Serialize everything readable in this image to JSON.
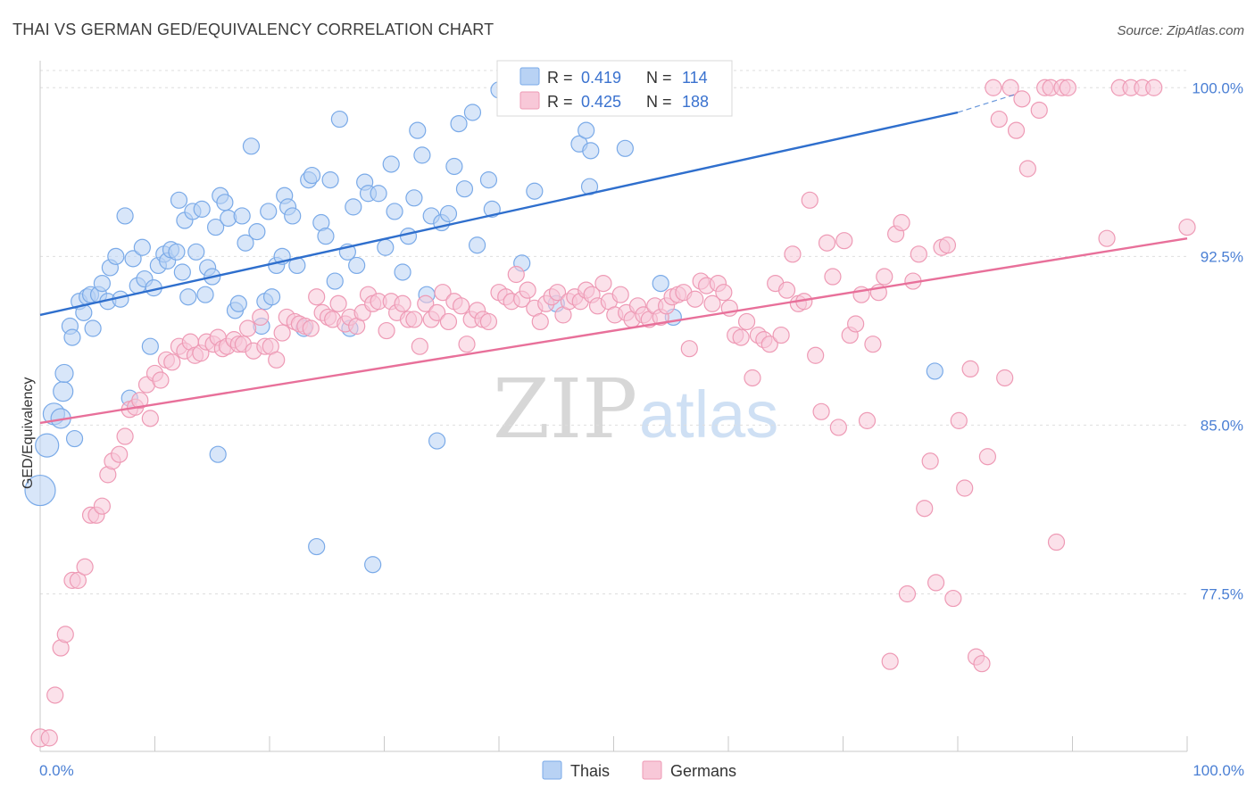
{
  "chart_data": {
    "type": "scatter",
    "title": "THAI VS GERMAN GED/EQUIVALENCY CORRELATION CHART",
    "source": "Source: ZipAtlas.com",
    "ylabel": "GED/Equivalency",
    "xlim": [
      0,
      100
    ],
    "ylim": [
      70.5,
      101.2
    ],
    "yticks": [
      77.5,
      85.0,
      92.5,
      100.0
    ],
    "ytick_labels": [
      "77.5%",
      "85.0%",
      "92.5%",
      "100.0%"
    ],
    "xtick_labels": [
      "0.0%",
      "100.0%"
    ],
    "grid": true,
    "legend_position": "bottom",
    "watermark": {
      "zip": "ZIP",
      "atlas": "atlas"
    },
    "stats": {
      "thais": {
        "r_label": "R =",
        "r": "0.419",
        "n_label": "N =",
        "n": "114"
      },
      "germans": {
        "r_label": "R =",
        "r": "0.425",
        "n_label": "N =",
        "n": "188"
      }
    },
    "series": [
      {
        "name": "Thais",
        "color": "#7aaae8",
        "fill": "#b8d2f4",
        "trend": {
          "x0": 0,
          "y0": 89.9,
          "x1": 80,
          "y1": 98.9,
          "dash_to": 85,
          "dash_y": 99.7,
          "color": "#2f6fcd"
        },
        "points": [
          [
            0,
            82.1
          ],
          [
            0.6,
            84.1
          ],
          [
            1.2,
            85.5
          ],
          [
            1.8,
            85.3
          ],
          [
            2.0,
            86.5
          ],
          [
            2.1,
            87.3
          ],
          [
            2.6,
            89.4
          ],
          [
            2.8,
            88.9
          ],
          [
            3.0,
            84.4
          ],
          [
            3.4,
            90.5
          ],
          [
            3.8,
            90.0
          ],
          [
            4.1,
            90.7
          ],
          [
            4.4,
            90.8
          ],
          [
            4.6,
            89.3
          ],
          [
            5.1,
            90.8
          ],
          [
            5.4,
            91.3
          ],
          [
            5.9,
            90.5
          ],
          [
            6.1,
            92.0
          ],
          [
            6.6,
            92.5
          ],
          [
            7.0,
            90.6
          ],
          [
            7.4,
            94.3
          ],
          [
            7.8,
            86.2
          ],
          [
            8.1,
            92.4
          ],
          [
            8.5,
            91.2
          ],
          [
            8.9,
            92.9
          ],
          [
            9.1,
            91.5
          ],
          [
            9.6,
            88.5
          ],
          [
            9.9,
            91.1
          ],
          [
            10.3,
            92.1
          ],
          [
            10.8,
            92.6
          ],
          [
            11.1,
            92.3
          ],
          [
            11.4,
            92.8
          ],
          [
            11.9,
            92.7
          ],
          [
            12.1,
            95.0
          ],
          [
            12.4,
            91.8
          ],
          [
            12.6,
            94.1
          ],
          [
            12.9,
            90.7
          ],
          [
            13.3,
            94.5
          ],
          [
            13.6,
            92.7
          ],
          [
            14.1,
            94.6
          ],
          [
            14.4,
            90.8
          ],
          [
            14.6,
            92.0
          ],
          [
            15.0,
            91.6
          ],
          [
            15.3,
            93.8
          ],
          [
            15.5,
            83.7
          ],
          [
            15.7,
            95.2
          ],
          [
            16.1,
            94.9
          ],
          [
            16.4,
            94.2
          ],
          [
            17.0,
            90.1
          ],
          [
            17.3,
            90.4
          ],
          [
            17.6,
            94.3
          ],
          [
            17.9,
            93.1
          ],
          [
            18.4,
            97.4
          ],
          [
            18.9,
            93.6
          ],
          [
            19.3,
            89.4
          ],
          [
            19.6,
            90.5
          ],
          [
            19.9,
            94.5
          ],
          [
            20.2,
            90.7
          ],
          [
            20.6,
            92.1
          ],
          [
            21.1,
            92.5
          ],
          [
            21.3,
            95.2
          ],
          [
            21.6,
            94.7
          ],
          [
            22.0,
            94.3
          ],
          [
            22.4,
            92.1
          ],
          [
            23.0,
            89.3
          ],
          [
            23.4,
            95.9
          ],
          [
            23.7,
            96.1
          ],
          [
            24.1,
            79.6
          ],
          [
            24.5,
            94.0
          ],
          [
            24.9,
            93.4
          ],
          [
            25.3,
            95.9
          ],
          [
            25.7,
            91.4
          ],
          [
            26.1,
            98.6
          ],
          [
            26.8,
            92.7
          ],
          [
            27.0,
            89.3
          ],
          [
            27.3,
            94.7
          ],
          [
            27.6,
            92.1
          ],
          [
            28.3,
            95.8
          ],
          [
            28.6,
            95.3
          ],
          [
            29.0,
            78.8
          ],
          [
            29.5,
            95.3
          ],
          [
            30.1,
            92.9
          ],
          [
            30.6,
            96.6
          ],
          [
            30.9,
            94.5
          ],
          [
            31.6,
            91.8
          ],
          [
            32.1,
            93.4
          ],
          [
            32.6,
            95.1
          ],
          [
            32.9,
            98.1
          ],
          [
            33.3,
            97.0
          ],
          [
            33.7,
            90.8
          ],
          [
            34.1,
            94.3
          ],
          [
            34.6,
            84.3
          ],
          [
            35.0,
            94.0
          ],
          [
            35.6,
            94.4
          ],
          [
            36.1,
            96.5
          ],
          [
            36.5,
            98.4
          ],
          [
            37.0,
            95.5
          ],
          [
            37.7,
            98.9
          ],
          [
            38.1,
            93.0
          ],
          [
            39.1,
            95.9
          ],
          [
            39.4,
            94.6
          ],
          [
            40.0,
            99.9
          ],
          [
            42.0,
            92.2
          ],
          [
            43.1,
            95.4
          ],
          [
            45.0,
            90.4
          ],
          [
            47.0,
            97.5
          ],
          [
            47.6,
            98.1
          ],
          [
            47.9,
            95.6
          ],
          [
            48.0,
            97.2
          ],
          [
            48.3,
            99.8
          ],
          [
            51.0,
            97.3
          ],
          [
            54.1,
            91.3
          ],
          [
            55.2,
            89.8
          ],
          [
            78.0,
            87.4
          ]
        ],
        "sizes": {
          "0": 17,
          "1": 13,
          "2": 12,
          "3": 11,
          "4": 11,
          "5": 10
        }
      },
      {
        "name": "Germans",
        "color": "#ee9ab5",
        "fill": "#f8c8d8",
        "trend": {
          "x0": 0,
          "y0": 85.1,
          "x1": 100,
          "y1": 93.3,
          "color": "#e8709a"
        },
        "points": [
          [
            0,
            71.1
          ],
          [
            0.8,
            71.1
          ],
          [
            1.3,
            73.0
          ],
          [
            1.8,
            75.1
          ],
          [
            2.2,
            75.7
          ],
          [
            2.8,
            78.1
          ],
          [
            3.3,
            78.1
          ],
          [
            3.9,
            78.7
          ],
          [
            4.4,
            81.0
          ],
          [
            4.9,
            81.0
          ],
          [
            5.4,
            81.4
          ],
          [
            5.9,
            82.8
          ],
          [
            6.3,
            83.4
          ],
          [
            6.9,
            83.7
          ],
          [
            7.4,
            84.5
          ],
          [
            7.8,
            85.7
          ],
          [
            8.3,
            85.8
          ],
          [
            8.7,
            86.1
          ],
          [
            9.3,
            86.8
          ],
          [
            9.6,
            85.3
          ],
          [
            10.0,
            87.3
          ],
          [
            10.5,
            87.0
          ],
          [
            11.0,
            87.9
          ],
          [
            11.5,
            87.8
          ],
          [
            12.1,
            88.5
          ],
          [
            12.6,
            88.3
          ],
          [
            13.1,
            88.7
          ],
          [
            13.5,
            88.1
          ],
          [
            14.0,
            88.2
          ],
          [
            14.5,
            88.7
          ],
          [
            15.1,
            88.6
          ],
          [
            15.5,
            88.9
          ],
          [
            15.9,
            88.4
          ],
          [
            16.3,
            88.5
          ],
          [
            16.9,
            88.8
          ],
          [
            17.3,
            88.6
          ],
          [
            17.7,
            88.6
          ],
          [
            18.1,
            89.3
          ],
          [
            18.6,
            88.3
          ],
          [
            19.2,
            89.8
          ],
          [
            19.6,
            88.5
          ],
          [
            20.1,
            88.5
          ],
          [
            20.6,
            87.9
          ],
          [
            21.1,
            89.1
          ],
          [
            21.5,
            89.8
          ],
          [
            22.2,
            89.6
          ],
          [
            22.6,
            89.5
          ],
          [
            23.1,
            89.4
          ],
          [
            23.6,
            89.3
          ],
          [
            24.1,
            90.7
          ],
          [
            24.6,
            90.0
          ],
          [
            25.1,
            89.8
          ],
          [
            25.5,
            89.7
          ],
          [
            26.0,
            90.4
          ],
          [
            26.6,
            89.5
          ],
          [
            27.0,
            89.8
          ],
          [
            27.6,
            89.4
          ],
          [
            28.1,
            90.0
          ],
          [
            28.6,
            90.8
          ],
          [
            29.0,
            90.4
          ],
          [
            29.5,
            90.5
          ],
          [
            30.2,
            89.2
          ],
          [
            30.6,
            90.5
          ],
          [
            31.1,
            90.0
          ],
          [
            31.6,
            90.4
          ],
          [
            32.1,
            89.7
          ],
          [
            32.6,
            89.7
          ],
          [
            33.1,
            88.5
          ],
          [
            33.6,
            90.4
          ],
          [
            34.1,
            89.7
          ],
          [
            34.6,
            90.0
          ],
          [
            35.1,
            90.9
          ],
          [
            35.6,
            89.6
          ],
          [
            36.1,
            90.5
          ],
          [
            36.7,
            90.3
          ],
          [
            37.2,
            88.6
          ],
          [
            37.6,
            89.7
          ],
          [
            38.1,
            90.1
          ],
          [
            38.6,
            89.7
          ],
          [
            39.1,
            89.6
          ],
          [
            40.0,
            90.9
          ],
          [
            40.6,
            90.7
          ],
          [
            41.1,
            90.5
          ],
          [
            41.5,
            91.7
          ],
          [
            42.0,
            90.6
          ],
          [
            42.5,
            91.0
          ],
          [
            43.1,
            90.2
          ],
          [
            43.6,
            89.6
          ],
          [
            44.1,
            90.4
          ],
          [
            44.6,
            90.7
          ],
          [
            45.1,
            90.9
          ],
          [
            45.6,
            89.9
          ],
          [
            46.1,
            90.5
          ],
          [
            46.6,
            90.7
          ],
          [
            47.1,
            90.5
          ],
          [
            47.6,
            91.0
          ],
          [
            48.1,
            90.8
          ],
          [
            48.6,
            90.3
          ],
          [
            49.1,
            91.3
          ],
          [
            49.6,
            90.5
          ],
          [
            50.1,
            89.9
          ],
          [
            50.6,
            90.8
          ],
          [
            51.1,
            90.0
          ],
          [
            51.6,
            89.7
          ],
          [
            52.1,
            90.3
          ],
          [
            52.6,
            89.9
          ],
          [
            53.1,
            89.7
          ],
          [
            53.6,
            90.3
          ],
          [
            54.1,
            89.8
          ],
          [
            54.6,
            90.3
          ],
          [
            55.1,
            90.7
          ],
          [
            55.6,
            90.8
          ],
          [
            56.1,
            90.9
          ],
          [
            56.6,
            88.4
          ],
          [
            57.1,
            90.6
          ],
          [
            57.6,
            91.4
          ],
          [
            58.1,
            91.2
          ],
          [
            58.6,
            90.4
          ],
          [
            59.1,
            91.3
          ],
          [
            59.6,
            90.9
          ],
          [
            60.1,
            90.2
          ],
          [
            60.6,
            89.0
          ],
          [
            61.1,
            88.9
          ],
          [
            61.6,
            89.6
          ],
          [
            62.1,
            87.1
          ],
          [
            62.6,
            89.0
          ],
          [
            63.1,
            88.8
          ],
          [
            63.6,
            88.6
          ],
          [
            64.1,
            91.3
          ],
          [
            64.6,
            89.0
          ],
          [
            65.1,
            91.0
          ],
          [
            65.6,
            92.6
          ],
          [
            66.1,
            90.4
          ],
          [
            66.6,
            90.5
          ],
          [
            67.1,
            95.0
          ],
          [
            67.6,
            88.1
          ],
          [
            68.1,
            85.6
          ],
          [
            68.6,
            93.1
          ],
          [
            69.1,
            91.6
          ],
          [
            69.6,
            84.9
          ],
          [
            70.1,
            93.2
          ],
          [
            70.6,
            89.0
          ],
          [
            71.1,
            89.5
          ],
          [
            71.6,
            90.8
          ],
          [
            72.1,
            85.2
          ],
          [
            72.6,
            88.6
          ],
          [
            73.1,
            90.9
          ],
          [
            73.6,
            91.6
          ],
          [
            74.1,
            74.5
          ],
          [
            74.6,
            93.5
          ],
          [
            75.1,
            94.0
          ],
          [
            75.6,
            77.5
          ],
          [
            76.1,
            91.4
          ],
          [
            76.6,
            92.6
          ],
          [
            77.1,
            81.3
          ],
          [
            77.6,
            83.4
          ],
          [
            78.1,
            78.0
          ],
          [
            78.6,
            92.9
          ],
          [
            79.1,
            93.0
          ],
          [
            79.6,
            77.3
          ],
          [
            80.1,
            85.2
          ],
          [
            80.6,
            82.2
          ],
          [
            81.1,
            87.5
          ],
          [
            81.6,
            74.7
          ],
          [
            82.1,
            74.4
          ],
          [
            82.6,
            83.6
          ],
          [
            83.1,
            100.0
          ],
          [
            83.6,
            98.6
          ],
          [
            84.1,
            87.1
          ],
          [
            84.6,
            100.0
          ],
          [
            85.1,
            98.1
          ],
          [
            85.6,
            99.5
          ],
          [
            86.1,
            96.4
          ],
          [
            87.1,
            99.0
          ],
          [
            87.6,
            100.0
          ],
          [
            88.1,
            100.0
          ],
          [
            88.6,
            79.8
          ],
          [
            89.1,
            100.0
          ],
          [
            89.6,
            100.0
          ],
          [
            93.0,
            93.3
          ],
          [
            94.1,
            100.0
          ],
          [
            95.1,
            100.0
          ],
          [
            96.1,
            100.0
          ],
          [
            97.1,
            100.0
          ],
          [
            100.0,
            93.8
          ]
        ],
        "sizes": {
          "0": 10,
          "1": 9
        }
      }
    ]
  }
}
